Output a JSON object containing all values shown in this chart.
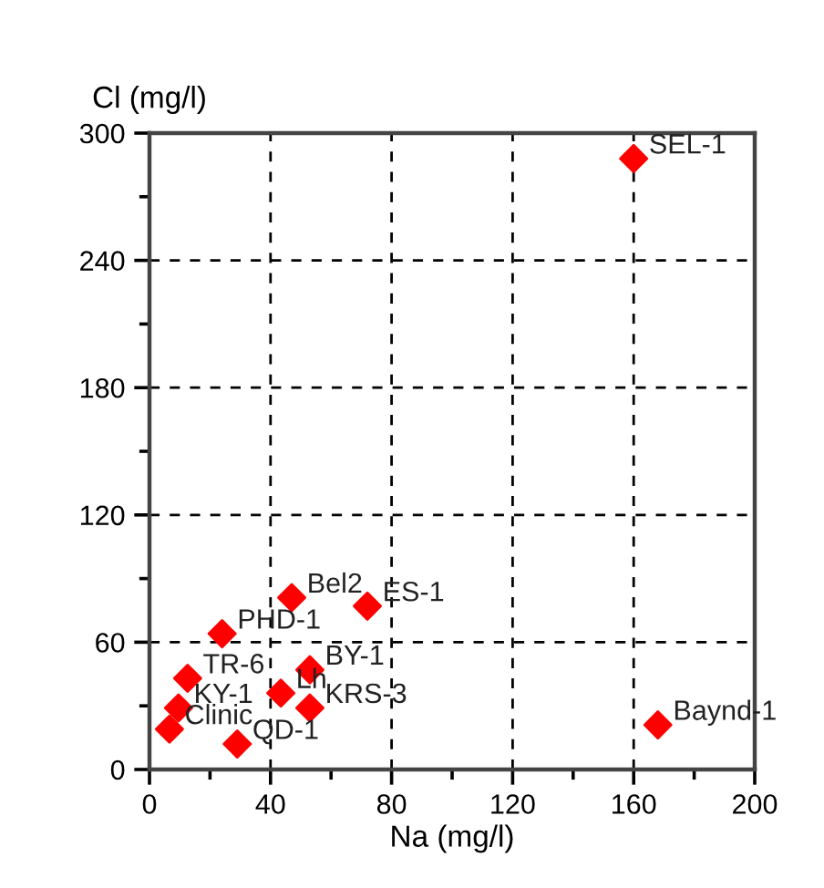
{
  "chart_data": {
    "type": "scatter",
    "xlabel": "Na (mg/l)",
    "ylabel": "Cl (mg/l)",
    "x": [
      160,
      168,
      47,
      72,
      24,
      12.6,
      53,
      9.6,
      6.6,
      43.4,
      53,
      29
    ],
    "series": [
      {
        "color": "#ff0000",
        "values": [
          288,
          21,
          81,
          77,
          64,
          43,
          47,
          29,
          19,
          36,
          29,
          12
        ]
      }
    ],
    "annotations": [
      {
        "text": "SEL-1",
        "x": 160,
        "y": 288
      },
      {
        "text": "Baynd-1",
        "x": 168,
        "y": 21
      },
      {
        "text": "Bel2",
        "x": 47,
        "y": 81
      },
      {
        "text": "ES-1",
        "x": 72,
        "y": 77
      },
      {
        "text": "PHD-1",
        "x": 24,
        "y": 64
      },
      {
        "text": "TR-6",
        "x": 12.6,
        "y": 43
      },
      {
        "text": "BY-1",
        "x": 53,
        "y": 47
      },
      {
        "text": "KY-1",
        "x": 9.6,
        "y": 29
      },
      {
        "text": "Clinic",
        "x": 6.6,
        "y": 19
      },
      {
        "text": "Lh",
        "x": 43.4,
        "y": 36
      },
      {
        "text": "KRS-3",
        "x": 53,
        "y": 29
      },
      {
        "text": "QD-1",
        "x": 29,
        "y": 12
      }
    ],
    "xlim": [
      0,
      200
    ],
    "xticks": [
      0,
      40,
      80,
      120,
      160,
      200
    ],
    "ylim": [
      0,
      300
    ],
    "yticks": [
      0,
      60,
      120,
      180,
      240,
      300
    ],
    "grid": true,
    "marker": "diamond",
    "legend": false
  }
}
